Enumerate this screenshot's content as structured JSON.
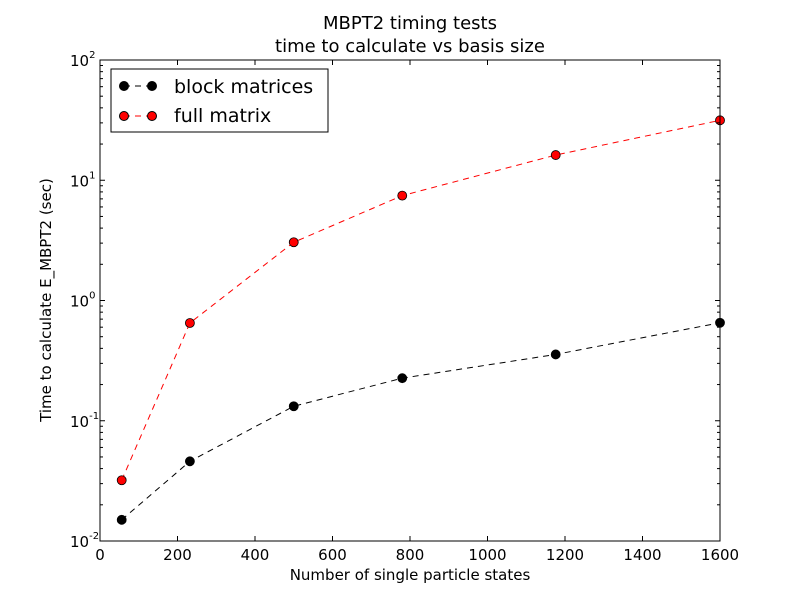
{
  "chart_data": {
    "type": "line",
    "title_line1": "MBPT2 timing tests",
    "title_line2": "time to calculate vs basis size",
    "xlabel": "Number of single particle states",
    "ylabel": "Time to calculate E_MBPT2 (sec)",
    "xlim": [
      0,
      1600
    ],
    "ylim": [
      0.01,
      100
    ],
    "yscale": "log",
    "grid": false,
    "legend_position": "top-left",
    "x_ticks": [
      "0",
      "200",
      "400",
      "600",
      "800",
      "1000",
      "1200",
      "1400",
      "1600"
    ],
    "y_ticks": [
      {
        "base": "10",
        "exp": "-2",
        "value": 0.01
      },
      {
        "base": "10",
        "exp": "-1",
        "value": 0.1
      },
      {
        "base": "10",
        "exp": "0",
        "value": 1
      },
      {
        "base": "10",
        "exp": "1",
        "value": 10
      },
      {
        "base": "10",
        "exp": "2",
        "value": 100
      }
    ],
    "x": [
      56,
      232,
      500,
      780,
      1176,
      1600
    ],
    "series": [
      {
        "name": "block matrices",
        "color": "#000000",
        "line_style": "dashed",
        "marker": "circle",
        "values": [
          0.015,
          0.046,
          0.132,
          0.226,
          0.356,
          0.653
        ]
      },
      {
        "name": "full matrix",
        "color": "#ff0000",
        "line_style": "dashed",
        "marker": "circle",
        "values": [
          0.032,
          0.65,
          3.05,
          7.45,
          16.2,
          31.5
        ]
      }
    ]
  }
}
